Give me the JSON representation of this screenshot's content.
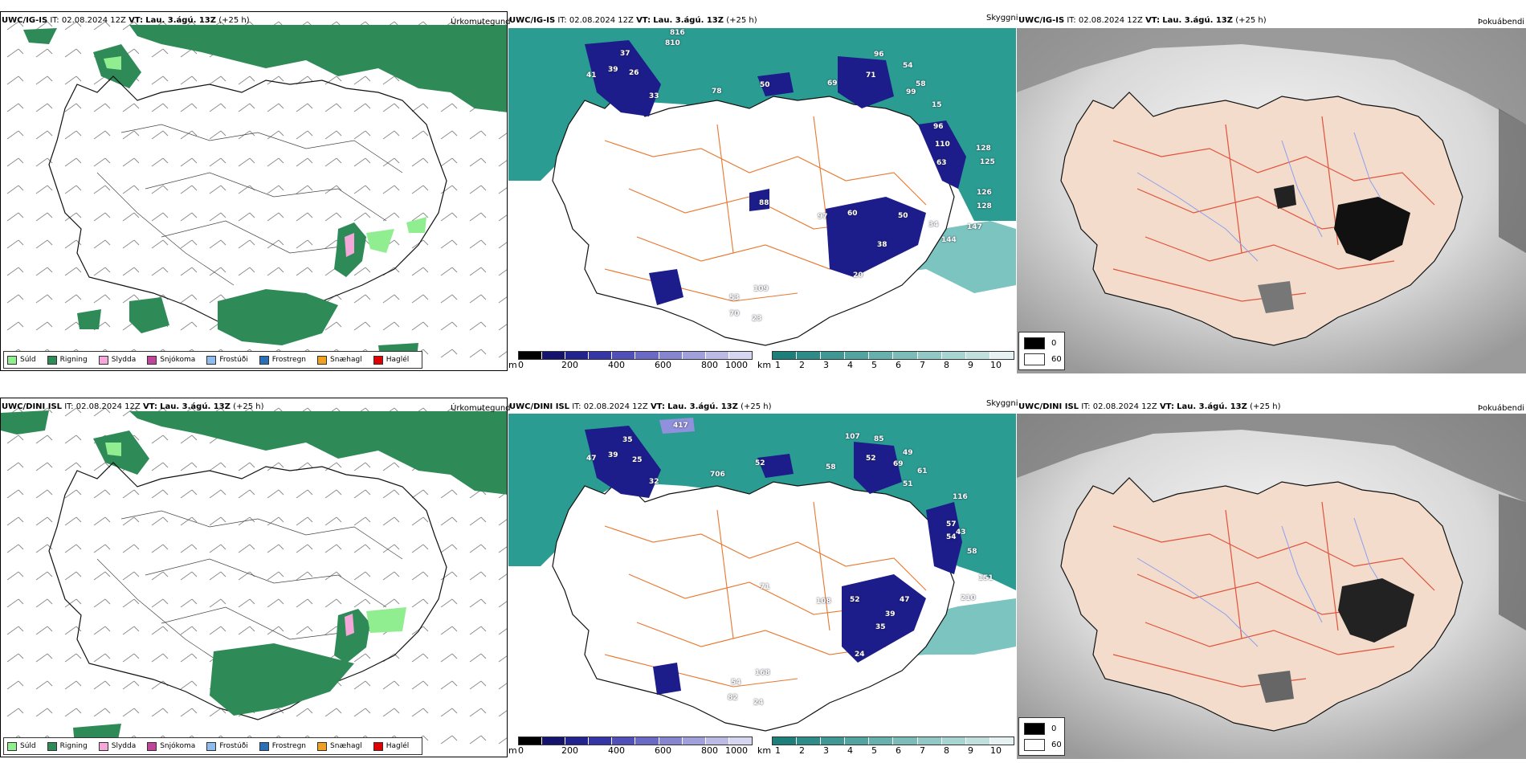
{
  "rows": [
    {
      "header": {
        "model": "UWC/IG-IS",
        "it_label": "IT:",
        "it_value": "02.08.2024 12Z",
        "vt_label": "VT:",
        "vt_value": "Lau. 3.ágú. 13Z",
        "lead": "(+25 h)"
      },
      "cloud_peaks": [
        "37",
        "39",
        "26",
        "41",
        "33",
        "816",
        "810",
        "78",
        "50",
        "69",
        "96",
        "71",
        "54",
        "58",
        "99",
        "15",
        "96",
        "110",
        "128",
        "63",
        "125",
        "126",
        "128",
        "88",
        "97",
        "60",
        "50",
        "34",
        "38",
        "144",
        "147",
        "20",
        "53",
        "109",
        "70",
        "23"
      ]
    },
    {
      "header": {
        "model": "UWC/DINI ISL",
        "it_label": "IT:",
        "it_value": "02.08.2024 12Z",
        "vt_label": "VT:",
        "vt_value": "Lau. 3.ágú. 13Z",
        "lead": "(+25 h)"
      },
      "cloud_peaks": [
        "35",
        "39",
        "25",
        "47",
        "32",
        "417",
        "706",
        "52",
        "58",
        "107",
        "85",
        "52",
        "69",
        "49",
        "61",
        "51",
        "116",
        "57",
        "43",
        "54",
        "58",
        "151",
        "210",
        "108",
        "52",
        "47",
        "39",
        "35",
        "24",
        "71",
        "54",
        "168",
        "82",
        "24"
      ]
    }
  ],
  "panel_titles": {
    "precip": "Úrkomutegund",
    "cloud": "Skyggni",
    "fog": "Þokuábendi"
  },
  "precip_legend": [
    {
      "label": "Súld",
      "color": "#90ee90"
    },
    {
      "label": "Rigning",
      "color": "#2e8b57"
    },
    {
      "label": "Slydda",
      "color": "#f4a7d8"
    },
    {
      "label": "Snjókoma",
      "color": "#c0449a"
    },
    {
      "label": "Frostúði",
      "color": "#8fbcef"
    },
    {
      "label": "Frostregn",
      "color": "#2a6fb5"
    },
    {
      "label": "Snæhagl",
      "color": "#f0a020"
    },
    {
      "label": "Haglél",
      "color": "#e00000"
    }
  ],
  "cloud_base_bar": {
    "unit": "m",
    "ticks": [
      "0",
      "200",
      "400",
      "600",
      "800",
      "1000"
    ],
    "colors": [
      "#000000",
      "#14146e",
      "#23238f",
      "#3535a8",
      "#5050b8",
      "#6a6ac6",
      "#8585d0",
      "#a0a0da",
      "#babae4",
      "#d6d6f0"
    ]
  },
  "visibility_bar": {
    "unit": "km",
    "ticks": [
      "1",
      "2",
      "3",
      "4",
      "5",
      "6",
      "7",
      "8",
      "9",
      "10"
    ],
    "colors": [
      "#1c7f7a",
      "#2d8c87",
      "#3f9894",
      "#52a4a0",
      "#66b0ad",
      "#7bbcb9",
      "#91c8c5",
      "#a8d4d2",
      "#c0e0de",
      "#e6f2f1"
    ]
  },
  "fog_legend": [
    {
      "label": "0",
      "color": "#000000"
    },
    {
      "label": "60",
      "color": "#ffffff"
    }
  ],
  "colors": {
    "land": "#f3dccc",
    "sea_green": "#1f8f86",
    "rain": "#2e8b57",
    "drizzle": "#90ee90",
    "roads": "#e8772e"
  }
}
